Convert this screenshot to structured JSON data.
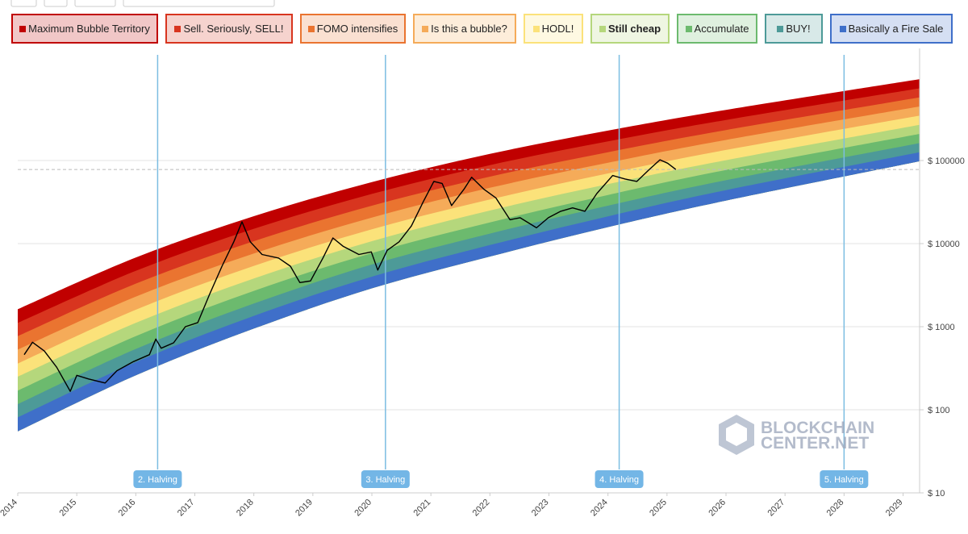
{
  "chart_data": {
    "type": "area",
    "yscale": "log",
    "xlim": [
      2014,
      2029.28
    ],
    "xticks": [
      2014,
      2015,
      2016,
      2017,
      2018,
      2019,
      2020,
      2021,
      2022,
      2023,
      2024,
      2025,
      2026,
      2027,
      2028,
      2029
    ],
    "ylim": [
      10,
      2000000
    ],
    "yticks": [
      {
        "value": 10,
        "label": "$ 10"
      },
      {
        "value": 100,
        "label": "$ 100"
      },
      {
        "value": 1000,
        "label": "$ 1000"
      },
      {
        "value": 10000,
        "label": "$ 10000"
      },
      {
        "value": 100000,
        "label": "$ 100000"
      }
    ],
    "grid": true,
    "x": [
      2014,
      2016,
      2018,
      2020,
      2022,
      2024,
      2026,
      2029.28
    ],
    "series": [
      {
        "name": "Maximum Bubble Territory",
        "color": "#c00000",
        "values": [
          1620,
          6800,
          21400,
          55000,
          120000,
          229000,
          407000,
          955000
        ]
      },
      {
        "name": "Sell. Seriously, SELL!",
        "color": "#d8351f",
        "values": [
          1110,
          4700,
          15100,
          39600,
          88000,
          170000,
          308000,
          740000
        ]
      },
      {
        "name": "FOMO intensifies",
        "color": "#ea7430",
        "values": [
          770,
          3300,
          10700,
          28600,
          64000,
          126000,
          233000,
          575000
        ]
      },
      {
        "name": "Is this a bubble?",
        "color": "#f5ab59",
        "values": [
          530,
          2300,
          7600,
          20600,
          47000,
          94000,
          177000,
          447000
        ]
      },
      {
        "name": "HODL!",
        "color": "#fbe27a",
        "values": [
          360,
          1600,
          5400,
          14900,
          34000,
          70000,
          134000,
          347000
        ]
      },
      {
        "name": "Still cheap",
        "color": "#b5d77c",
        "values": [
          250,
          1110,
          3800,
          10700,
          25000,
          52000,
          101000,
          269000
        ]
      },
      {
        "name": "Accumulate",
        "color": "#6cba6e",
        "values": [
          170,
          770,
          2700,
          7700,
          18000,
          38500,
          77000,
          209000
        ]
      },
      {
        "name": "BUY!",
        "color": "#4d9a98",
        "values": [
          117,
          540,
          1900,
          5600,
          13200,
          28600,
          58000,
          162000
        ]
      },
      {
        "name": "Basically a Fire Sale",
        "color": "#3f6fc9",
        "values": [
          81,
          375,
          1350,
          4000,
          9600,
          21300,
          44000,
          126000
        ]
      }
    ],
    "band_floor": [
      55,
      260,
      950,
      2900,
      7000,
      15800,
      33000,
      98000
    ],
    "price": {
      "color": "#000000",
      "x": [
        2014.11,
        2014.25,
        2014.45,
        2014.66,
        2014.89,
        2015.0,
        2015.2,
        2015.48,
        2015.68,
        2015.96,
        2016.23,
        2016.34,
        2016.43,
        2016.64,
        2016.84,
        2017.05,
        2017.25,
        2017.46,
        2017.66,
        2017.8,
        2017.94,
        2018.14,
        2018.42,
        2018.62,
        2018.78,
        2018.96,
        2019.17,
        2019.34,
        2019.51,
        2019.78,
        2019.99,
        2020.1,
        2020.26,
        2020.46,
        2020.67,
        2020.87,
        2021.05,
        2021.19,
        2021.35,
        2021.56,
        2021.69,
        2021.9,
        2022.1,
        2022.34,
        2022.51,
        2022.79,
        2022.99,
        2023.2,
        2023.4,
        2023.61,
        2023.81,
        2024.08,
        2024.29,
        2024.49,
        2024.7,
        2024.88,
        2025.01,
        2025.15
      ],
      "values": [
        460,
        650,
        510,
        325,
        167,
        260,
        235,
        210,
        295,
        380,
        460,
        710,
        550,
        640,
        1000,
        1120,
        2450,
        5350,
        10500,
        18300,
        10500,
        7400,
        6700,
        5350,
        3400,
        3550,
        6700,
        11700,
        9300,
        7400,
        7950,
        4800,
        8300,
        10500,
        16300,
        31900,
        56000,
        53000,
        28700,
        45000,
        63000,
        45000,
        35500,
        19400,
        20500,
        15500,
        20500,
        24500,
        26900,
        24500,
        40000,
        66000,
        60000,
        56000,
        78000,
        102000,
        93000,
        78000
      ]
    },
    "halvings": [
      {
        "label": "2. Halving",
        "x": 2016.37
      },
      {
        "label": "3. Halving",
        "x": 2020.23
      },
      {
        "label": "4. Halving",
        "x": 2024.19
      },
      {
        "label": "5. Halving",
        "x": 2028.0
      }
    ],
    "watermark": [
      "BLOCKCHAIN",
      "CENTER.NET"
    ]
  }
}
